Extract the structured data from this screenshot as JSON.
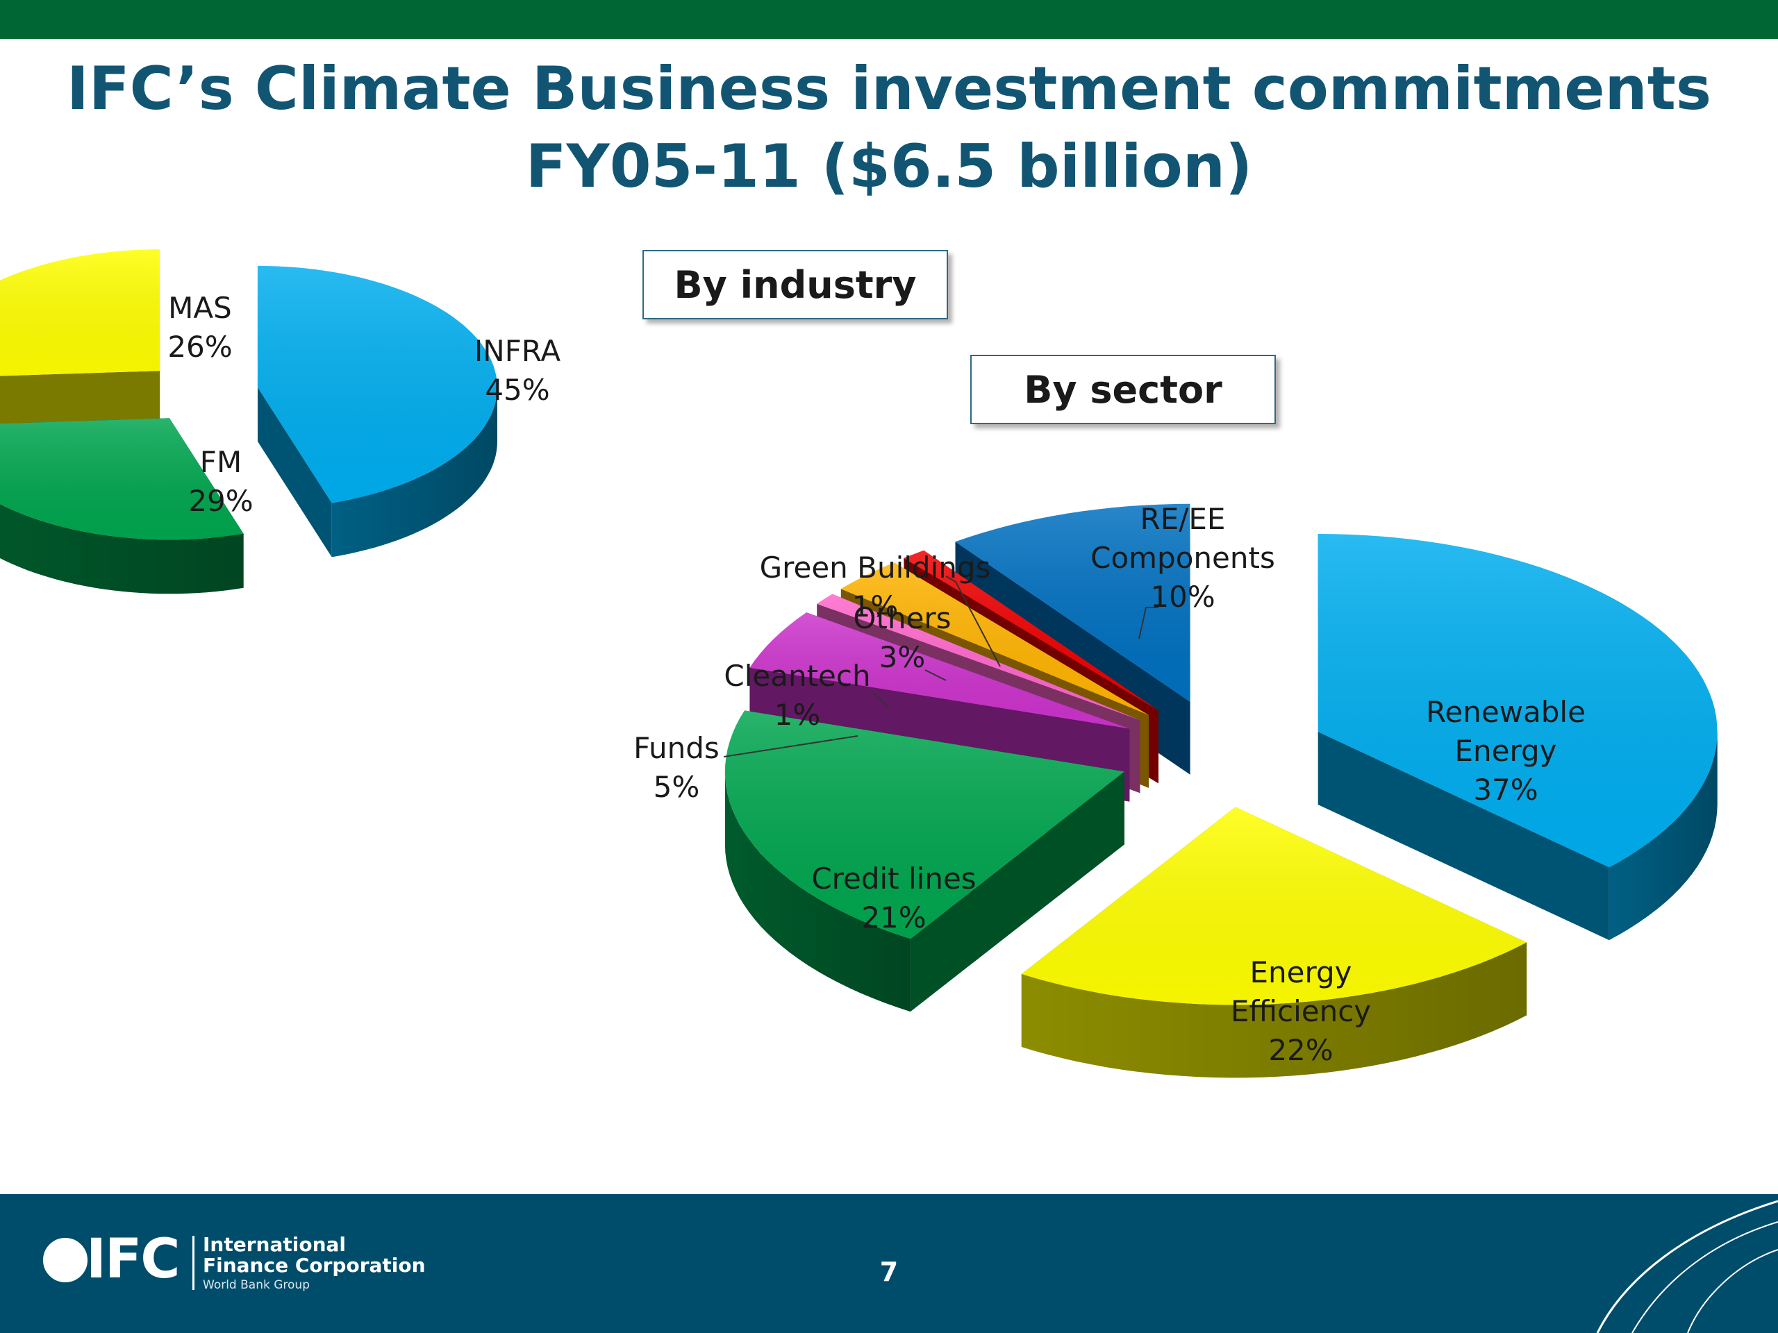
{
  "slide": {
    "title_line1": "IFC’s Climate Business investment commitments",
    "title_line2": "FY05-11 ($6.5 billion)",
    "page_number": "7"
  },
  "boxes": {
    "industry": "By industry",
    "sector": "By sector"
  },
  "footer": {
    "logo_text": "IFC",
    "org_line1": "International",
    "org_line2": "Finance Corporation",
    "org_line3": "World Bank Group"
  },
  "colors": {
    "accent_green": "#006633",
    "title_blue": "#115573",
    "footer_navy": "#004d6b"
  },
  "chart_data": [
    {
      "type": "pie",
      "title": "By industry",
      "categories": [
        "INFRA",
        "FM",
        "MAS"
      ],
      "values": [
        45,
        29,
        26
      ],
      "labels": [
        "INFRA\n45%",
        "FM\n29%",
        "MAS\n26%"
      ],
      "colors": [
        "#00aeef",
        "#00a64f",
        "#ffff00"
      ],
      "exploded": true,
      "three_d": true
    },
    {
      "type": "pie",
      "title": "By sector",
      "categories": [
        "Renewable Energy",
        "Energy Efficiency",
        "Credit lines",
        "Funds",
        "Cleantech",
        "Others",
        "Green Buildings",
        "RE/EE Components"
      ],
      "values": [
        37,
        22,
        21,
        5,
        1,
        3,
        1,
        10
      ],
      "labels": [
        "Renewable\nEnergy\n37%",
        "Energy\nEfficiency\n22%",
        "Credit lines\n21%",
        "Funds\n5%",
        "Cleantech\n1%",
        "Others\n3%",
        "Green Buildings\n1%",
        "RE/EE\nComponents\n10%"
      ],
      "colors": [
        "#00aeef",
        "#ffff00",
        "#00a64f",
        "#cc33cc",
        "#ff66cc",
        "#ffb400",
        "#ee0000",
        "#0070c0"
      ],
      "exploded": true,
      "three_d": true
    }
  ]
}
